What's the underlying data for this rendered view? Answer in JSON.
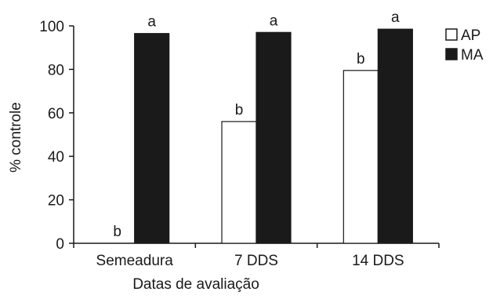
{
  "chart_data": {
    "type": "bar",
    "title": "",
    "xlabel": "Datas de avaliação",
    "ylabel": "% controle",
    "ylim": [
      0,
      100
    ],
    "yticks": [
      "0",
      "20",
      "40",
      "60",
      "80",
      "100"
    ],
    "categories": [
      "Semeadura",
      "7 DDS",
      "14 DDS"
    ],
    "series": [
      {
        "name": "AP",
        "fill": "#ffffff",
        "stroke": "#1a1a1a",
        "values": [
          0,
          56,
          79.5
        ],
        "letters": [
          "b",
          "b",
          "b"
        ]
      },
      {
        "name": "MA",
        "fill": "#1a1a1a",
        "stroke": "#1a1a1a",
        "values": [
          96.5,
          97,
          98.5
        ],
        "letters": [
          "a",
          "a",
          "a"
        ]
      }
    ],
    "legend_position": "top-right",
    "grid": false
  }
}
